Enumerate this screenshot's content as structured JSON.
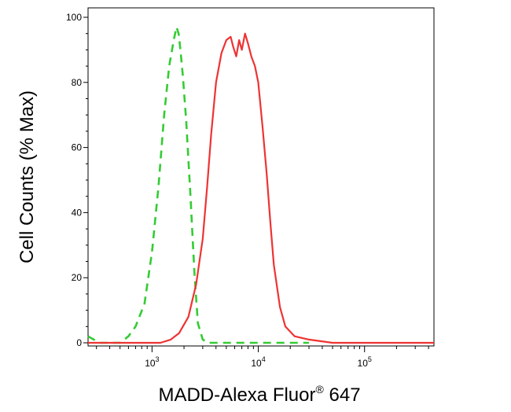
{
  "chart_data": {
    "type": "line",
    "xlabel": "MADD-Alexa Fluor",
    "xlabel_superscript": "®",
    "xlabel_suffix": " 647",
    "ylabel": "Cell Counts (% Max)",
    "x_scale": "log",
    "xlim": [
      250,
      450000
    ],
    "ylim": [
      0,
      100
    ],
    "grid": false,
    "y_ticks": [
      0,
      20,
      40,
      60,
      80,
      100
    ],
    "x_ticks": [
      {
        "value": 1000,
        "base": "10",
        "exp": "3"
      },
      {
        "value": 10000,
        "base": "10",
        "exp": "4"
      },
      {
        "value": 100000,
        "base": "10",
        "exp": "5"
      }
    ],
    "series": [
      {
        "color": "#33cc33",
        "dash": "dashed",
        "x": [
          250,
          320,
          400,
          500,
          600,
          700,
          850,
          1000,
          1150,
          1300,
          1450,
          1600,
          1700,
          1780,
          1850,
          1950,
          2100,
          2300,
          2500,
          2700,
          3000,
          3400,
          4000,
          5000,
          6000,
          8000,
          10000,
          15000,
          20000,
          30000
        ],
        "values": [
          2,
          0,
          0,
          0,
          2,
          5,
          12,
          28,
          48,
          70,
          85,
          93,
          97,
          95,
          90,
          82,
          68,
          45,
          22,
          6,
          1,
          0,
          0,
          0,
          0,
          0,
          0,
          0,
          0,
          0
        ]
      },
      {
        "color": "#ee3333",
        "dash": "solid",
        "x": [
          250,
          1000,
          1200,
          1500,
          1800,
          2200,
          2600,
          3000,
          3300,
          3600,
          4000,
          4500,
          5000,
          5500,
          5800,
          6200,
          6600,
          7000,
          7500,
          8000,
          8600,
          9300,
          10000,
          11000,
          12000,
          13000,
          14000,
          16000,
          18000,
          22000,
          30000,
          50000,
          100000,
          450000
        ],
        "values": [
          0,
          0,
          0,
          1,
          3,
          8,
          18,
          32,
          48,
          64,
          80,
          89,
          93,
          94,
          91,
          88,
          93,
          90,
          95,
          92,
          88,
          85,
          80,
          66,
          52,
          37,
          24,
          11,
          5,
          2,
          1,
          0,
          0,
          0
        ]
      }
    ]
  }
}
